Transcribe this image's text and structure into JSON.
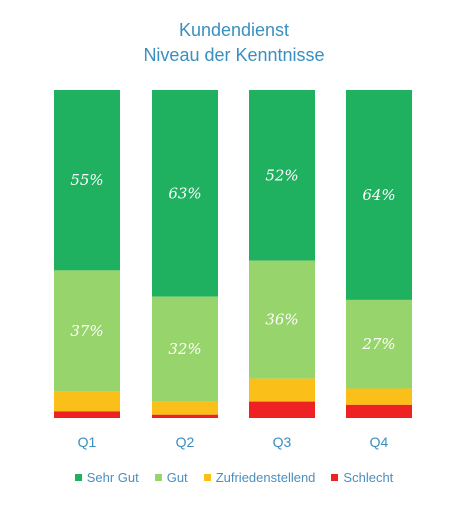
{
  "chart_data": {
    "type": "bar",
    "stacked": true,
    "percent_stacked": true,
    "title": "Kundendienst",
    "subtitle": "Niveau der Kenntnisse",
    "categories": [
      "Q1",
      "Q2",
      "Q3",
      "Q4"
    ],
    "series": [
      {
        "name": "Sehr Gut",
        "color": "#1fb060",
        "values": [
          55,
          63,
          52,
          64
        ]
      },
      {
        "name": "Gut",
        "color": "#97d46c",
        "values": [
          37,
          32,
          36,
          27
        ]
      },
      {
        "name": "Zufriedenstellend",
        "color": "#fbbf19",
        "values": [
          6,
          4,
          7,
          5
        ]
      },
      {
        "name": "Schlecht",
        "color": "#ee2222",
        "values": [
          2,
          1,
          5,
          4
        ]
      }
    ],
    "data_labels": {
      "Sehr Gut": [
        "55%",
        "63%",
        "52%",
        "64%"
      ],
      "Gut": [
        "37%",
        "32%",
        "36%",
        "27%"
      ]
    },
    "ylim": [
      0,
      100
    ],
    "grid": false,
    "legend": "bottom"
  }
}
